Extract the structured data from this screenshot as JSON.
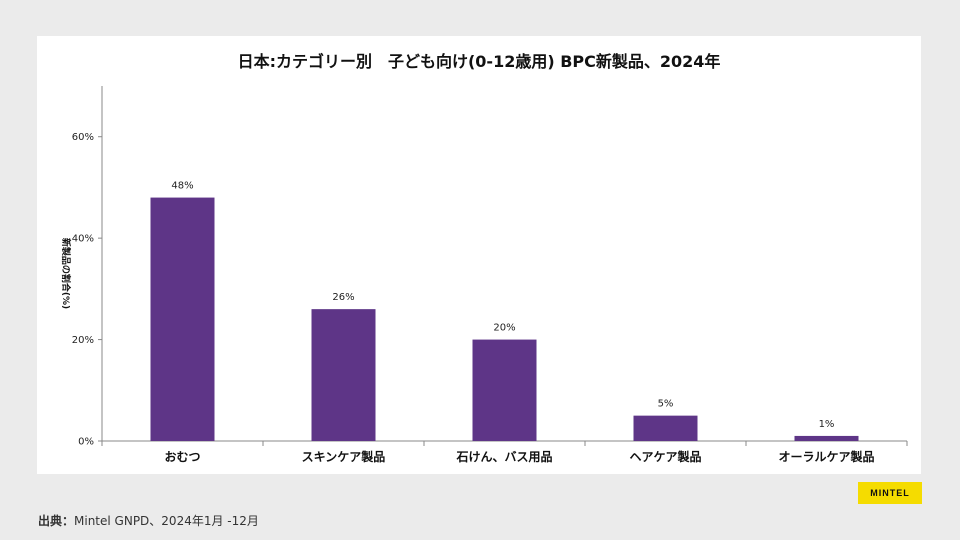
{
  "chart_data": {
    "type": "bar",
    "title": "日本:カテゴリー別　子ども向け(0-12歳用) BPC新製品、2024年",
    "ylabel": "新製品の割合(%)",
    "xlabel": "",
    "categories": [
      "おむつ",
      "スキンケア製品",
      "石けん、バス用品",
      "ヘアケア製品",
      "オーラルケア製品"
    ],
    "values": [
      48,
      26,
      20,
      5,
      1
    ],
    "value_labels": [
      "48%",
      "26%",
      "20%",
      "5%",
      "1%"
    ],
    "ylim": [
      0,
      70
    ],
    "yticks": [
      0,
      20,
      40,
      60
    ],
    "ytick_labels": [
      "0%",
      "20%",
      "40%",
      "60%"
    ],
    "bar_color": "#5e3587",
    "grid": false,
    "legend": "none"
  },
  "source": {
    "label": "出典：",
    "text": "Mintel GNPD、2024年1月 -12月"
  },
  "logo": "MINTEL"
}
